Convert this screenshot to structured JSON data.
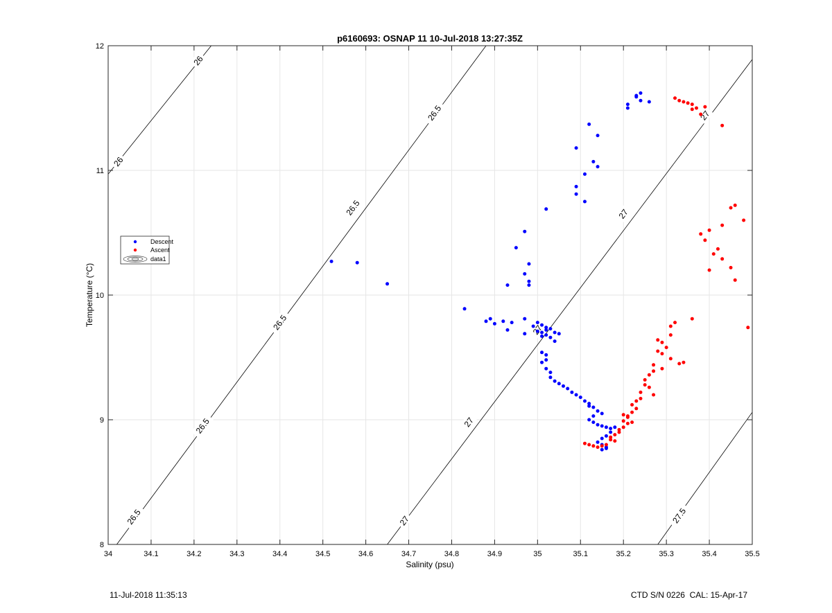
{
  "chart_data": {
    "type": "scatter",
    "title": "p6160693: OSNAP 11 10-Jul-2018 13:27:35Z",
    "xlabel": "Salinity (psu)",
    "ylabel": "Temperature (°C)",
    "xlim": [
      34,
      35.5
    ],
    "ylim": [
      8,
      12
    ],
    "xticks": [
      "34",
      "34.1",
      "34.2",
      "34.3",
      "34.4",
      "34.5",
      "34.6",
      "34.7",
      "34.8",
      "34.9",
      "35",
      "35.1",
      "35.2",
      "35.3",
      "35.4",
      "35.5"
    ],
    "yticks": [
      "8",
      "9",
      "10",
      "11",
      "12"
    ],
    "grid": true,
    "legend_position": "left",
    "legend": [
      "Descent",
      "Ascent",
      "data1"
    ],
    "colors": {
      "descent": "#0000ff",
      "ascent": "#ff0000",
      "contour": "#000000"
    },
    "contours": [
      {
        "label": "26",
        "points": [
          [
            34.0,
            10.97
          ],
          [
            34.24,
            12.0
          ]
        ],
        "label_positions": [
          [
            34.024,
            11.07
          ],
          [
            34.21,
            11.88
          ]
        ]
      },
      {
        "label": "26.5",
        "points": [
          [
            34.02,
            8.0
          ],
          [
            34.88,
            12.0
          ]
        ],
        "label_positions": [
          [
            34.06,
            8.22
          ],
          [
            34.22,
            8.95
          ],
          [
            34.4,
            9.78
          ],
          [
            34.57,
            10.7
          ],
          [
            34.76,
            11.46
          ]
        ]
      },
      {
        "label": "27",
        "points": [
          [
            34.65,
            8.0
          ],
          [
            35.5,
            11.89
          ]
        ],
        "label_positions": [
          [
            34.69,
            8.19
          ],
          [
            34.84,
            8.98
          ],
          [
            35.0,
            9.72
          ],
          [
            35.2,
            10.65
          ],
          [
            35.39,
            11.44
          ]
        ]
      },
      {
        "label": "27.5",
        "points": [
          [
            35.28,
            8.0
          ],
          [
            35.5,
            9.06
          ]
        ],
        "label_positions": [
          [
            35.33,
            8.23
          ]
        ]
      }
    ],
    "series": [
      {
        "name": "Descent",
        "points": [
          [
            35.24,
            11.62
          ],
          [
            35.23,
            11.59
          ],
          [
            35.24,
            11.56
          ],
          [
            35.26,
            11.55
          ],
          [
            35.23,
            11.6
          ],
          [
            35.21,
            11.53
          ],
          [
            35.21,
            11.5
          ],
          [
            35.12,
            11.37
          ],
          [
            35.14,
            11.28
          ],
          [
            35.09,
            11.18
          ],
          [
            35.13,
            11.07
          ],
          [
            35.14,
            11.03
          ],
          [
            35.11,
            10.97
          ],
          [
            35.09,
            10.87
          ],
          [
            35.09,
            10.81
          ],
          [
            35.11,
            10.75
          ],
          [
            35.02,
            10.69
          ],
          [
            34.97,
            10.51
          ],
          [
            34.95,
            10.38
          ],
          [
            34.98,
            10.25
          ],
          [
            34.97,
            10.17
          ],
          [
            34.98,
            10.11
          ],
          [
            34.98,
            10.08
          ],
          [
            34.93,
            10.08
          ],
          [
            34.52,
            10.27
          ],
          [
            34.58,
            10.26
          ],
          [
            34.65,
            10.09
          ],
          [
            34.83,
            9.89
          ],
          [
            34.88,
            9.79
          ],
          [
            34.89,
            9.81
          ],
          [
            34.9,
            9.77
          ],
          [
            34.92,
            9.79
          ],
          [
            34.94,
            9.78
          ],
          [
            34.93,
            9.72
          ],
          [
            34.97,
            9.81
          ],
          [
            34.97,
            9.69
          ],
          [
            34.99,
            9.75
          ],
          [
            35.0,
            9.78
          ],
          [
            35.01,
            9.76
          ],
          [
            35.02,
            9.74
          ],
          [
            35.03,
            9.73
          ],
          [
            35.04,
            9.7
          ],
          [
            35.02,
            9.68
          ],
          [
            35.03,
            9.66
          ],
          [
            35.01,
            9.67
          ],
          [
            35.05,
            9.69
          ],
          [
            35.04,
            9.63
          ],
          [
            35.0,
            9.71
          ],
          [
            35.01,
            9.7
          ],
          [
            35.02,
            9.72
          ],
          [
            35.01,
            9.54
          ],
          [
            35.02,
            9.52
          ],
          [
            35.02,
            9.48
          ],
          [
            35.01,
            9.46
          ],
          [
            35.02,
            9.41
          ],
          [
            35.03,
            9.38
          ],
          [
            35.03,
            9.34
          ],
          [
            35.04,
            9.31
          ],
          [
            35.05,
            9.29
          ],
          [
            35.06,
            9.27
          ],
          [
            35.07,
            9.25
          ],
          [
            35.08,
            9.22
          ],
          [
            35.09,
            9.2
          ],
          [
            35.1,
            9.18
          ],
          [
            35.11,
            9.15
          ],
          [
            35.12,
            9.13
          ],
          [
            35.12,
            9.11
          ],
          [
            35.13,
            9.1
          ],
          [
            35.14,
            9.07
          ],
          [
            35.15,
            9.05
          ],
          [
            35.13,
            9.03
          ],
          [
            35.12,
            9.0
          ],
          [
            35.13,
            8.98
          ],
          [
            35.14,
            8.96
          ],
          [
            35.15,
            8.95
          ],
          [
            35.16,
            8.94
          ],
          [
            35.17,
            8.93
          ],
          [
            35.18,
            8.94
          ],
          [
            35.17,
            8.9
          ],
          [
            35.16,
            8.87
          ],
          [
            35.15,
            8.85
          ],
          [
            35.14,
            8.82
          ],
          [
            35.15,
            8.8
          ],
          [
            35.16,
            8.78
          ],
          [
            35.15,
            8.76
          ],
          [
            35.16,
            8.77
          ]
        ]
      },
      {
        "name": "Ascent",
        "points": [
          [
            35.32,
            11.58
          ],
          [
            35.33,
            11.56
          ],
          [
            35.34,
            11.55
          ],
          [
            35.35,
            11.54
          ],
          [
            35.36,
            11.53
          ],
          [
            35.37,
            11.5
          ],
          [
            35.36,
            11.49
          ],
          [
            35.38,
            11.45
          ],
          [
            35.39,
            11.51
          ],
          [
            35.43,
            11.36
          ],
          [
            35.46,
            10.72
          ],
          [
            35.45,
            10.7
          ],
          [
            35.43,
            10.56
          ],
          [
            35.4,
            10.52
          ],
          [
            35.38,
            10.49
          ],
          [
            35.39,
            10.44
          ],
          [
            35.42,
            10.37
          ],
          [
            35.41,
            10.33
          ],
          [
            35.43,
            10.29
          ],
          [
            35.4,
            10.2
          ],
          [
            35.45,
            10.22
          ],
          [
            35.46,
            10.12
          ],
          [
            35.48,
            10.6
          ],
          [
            35.49,
            9.74
          ],
          [
            35.36,
            9.81
          ],
          [
            35.32,
            9.78
          ],
          [
            35.31,
            9.75
          ],
          [
            35.31,
            9.68
          ],
          [
            35.28,
            9.64
          ],
          [
            35.29,
            9.62
          ],
          [
            35.3,
            9.58
          ],
          [
            35.28,
            9.55
          ],
          [
            35.29,
            9.53
          ],
          [
            35.31,
            9.49
          ],
          [
            35.33,
            9.45
          ],
          [
            35.34,
            9.46
          ],
          [
            35.27,
            9.44
          ],
          [
            35.26,
            9.36
          ],
          [
            35.25,
            9.32
          ],
          [
            35.25,
            9.28
          ],
          [
            35.24,
            9.22
          ],
          [
            35.27,
            9.2
          ],
          [
            35.24,
            9.17
          ],
          [
            35.22,
            9.12
          ],
          [
            35.23,
            9.09
          ],
          [
            35.22,
            9.06
          ],
          [
            35.21,
            9.02
          ],
          [
            35.2,
            8.99
          ],
          [
            35.21,
            8.97
          ],
          [
            35.2,
            8.94
          ],
          [
            35.19,
            8.92
          ],
          [
            35.19,
            8.9
          ],
          [
            35.18,
            8.88
          ],
          [
            35.17,
            8.86
          ],
          [
            35.17,
            8.84
          ],
          [
            35.18,
            8.83
          ],
          [
            35.16,
            8.8
          ],
          [
            35.15,
            8.79
          ],
          [
            35.14,
            8.78
          ],
          [
            35.13,
            8.79
          ],
          [
            35.12,
            8.8
          ],
          [
            35.11,
            8.81
          ],
          [
            35.2,
            9.04
          ],
          [
            35.21,
            9.03
          ],
          [
            35.22,
            8.98
          ],
          [
            35.23,
            9.15
          ],
          [
            35.26,
            9.26
          ],
          [
            35.27,
            9.39
          ],
          [
            35.29,
            9.41
          ]
        ]
      }
    ],
    "footer_left": "11-Jul-2018 11:35:13",
    "footer_right": "CTD S/N 0226  CAL: 15-Apr-17"
  }
}
